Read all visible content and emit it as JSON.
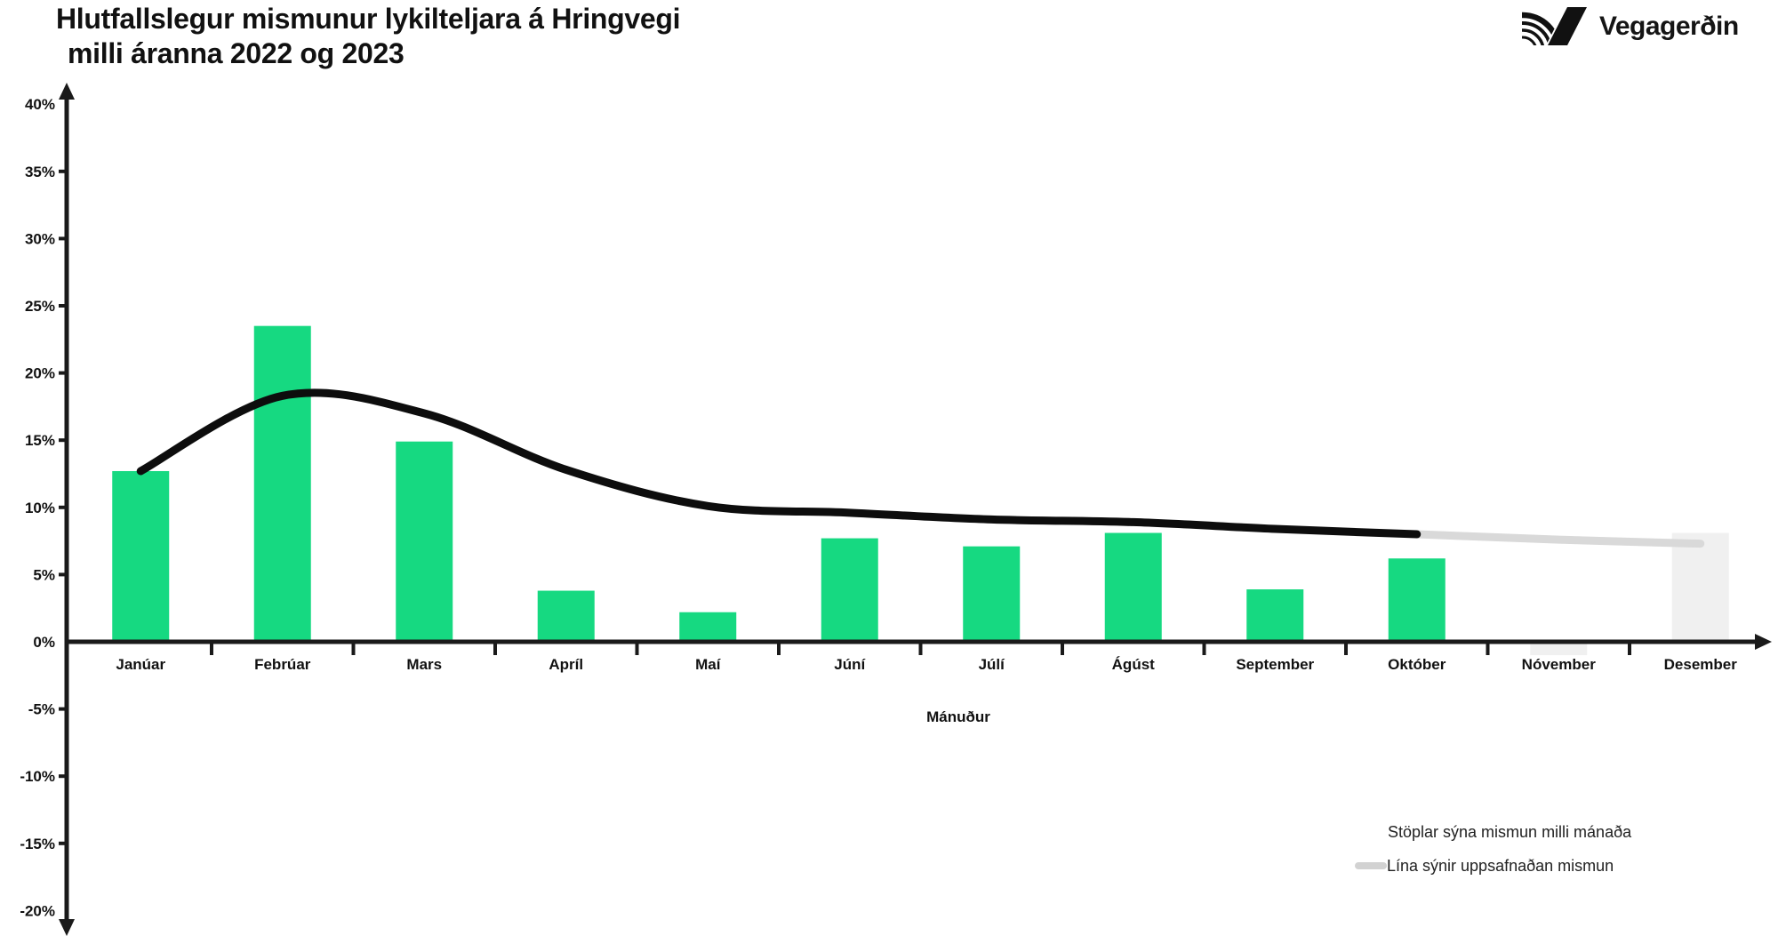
{
  "header": {
    "title_line1": "Hlutfallslegur mismunur lykilteljara á Hringvegi",
    "title_line2": "milli áranna 2022 og 2023",
    "logo_text": "Vegagerðin"
  },
  "chart_data": {
    "type": "bar",
    "title": "Hlutfallslegur mismunur lykilteljara á Hringvegi milli áranna 2022 og 2023",
    "categories": [
      "Janúar",
      "Febrúar",
      "Mars",
      "Apríl",
      "Maí",
      "Júní",
      "Júlí",
      "Ágúst",
      "September",
      "Október",
      "Nóvember",
      "Desember"
    ],
    "series": [
      {
        "name": "Stöplar sýna mismun milli mánaða",
        "type": "bar",
        "values": [
          12.7,
          23.5,
          14.9,
          3.8,
          2.2,
          7.7,
          7.1,
          8.1,
          3.9,
          6.2,
          -1.0,
          8.1
        ],
        "solid_count": 10,
        "estimated_from": "Nóvember"
      },
      {
        "name": "Lína sýnir uppsafnaðan mismun",
        "type": "line",
        "values": [
          12.7,
          18.3,
          17.0,
          12.8,
          10.1,
          9.6,
          9.1,
          8.9,
          8.4,
          8.0,
          7.6,
          7.3
        ],
        "solid_count": 10,
        "estimated_from": "Nóvember"
      }
    ],
    "xlabel": "Mánuður",
    "ylabel": "",
    "ylim": [
      -20,
      40
    ],
    "ytick_step": 5,
    "ytick_labels": [
      "40%",
      "35%",
      "30%",
      "25%",
      "20%",
      "15%",
      "10%",
      "5%",
      "0%",
      "-5%",
      "-10%",
      "-15%",
      "-20%"
    ],
    "grid": false,
    "legend_position": "bottom-right",
    "colors": {
      "bar": "#16d981",
      "bar_estimated": "#f0f0f0",
      "line": "#0d0d0d",
      "line_estimated": "#d9d9d9",
      "axis": "#1a1a1a"
    }
  },
  "legend": {
    "bars_label": "Stöplar sýna mismun milli mánaða",
    "line_label": "Lína sýnir uppsafnaðan mismun"
  }
}
